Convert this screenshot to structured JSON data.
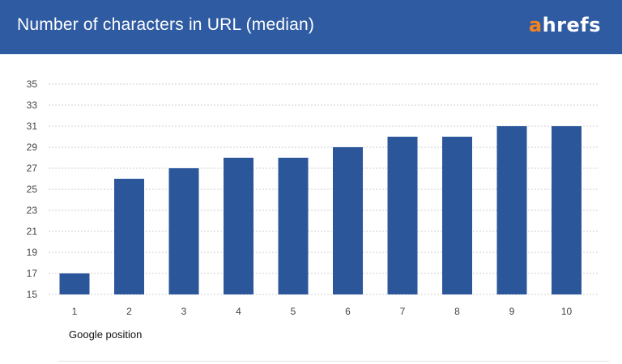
{
  "header": {
    "title": "Number of characters in URL (median)",
    "logo_accent": "a",
    "logo_rest": "hrefs"
  },
  "colors": {
    "header_bg": "#2f5ba2",
    "bar": "#2b579a",
    "logo_accent": "#f58220",
    "grid": "#cfcfcf"
  },
  "chart_data": {
    "type": "bar",
    "title": "Number of characters in URL (median)",
    "xlabel": "Google position",
    "ylabel": "",
    "categories": [
      "1",
      "2",
      "3",
      "4",
      "5",
      "6",
      "7",
      "8",
      "9",
      "10"
    ],
    "values": [
      17,
      26,
      27,
      28,
      28,
      29,
      30,
      30,
      31,
      31
    ],
    "ylim": [
      15,
      35
    ],
    "yticks": [
      15,
      17,
      19,
      21,
      23,
      25,
      27,
      29,
      31,
      33,
      35
    ],
    "grid": true,
    "legend": "none"
  }
}
